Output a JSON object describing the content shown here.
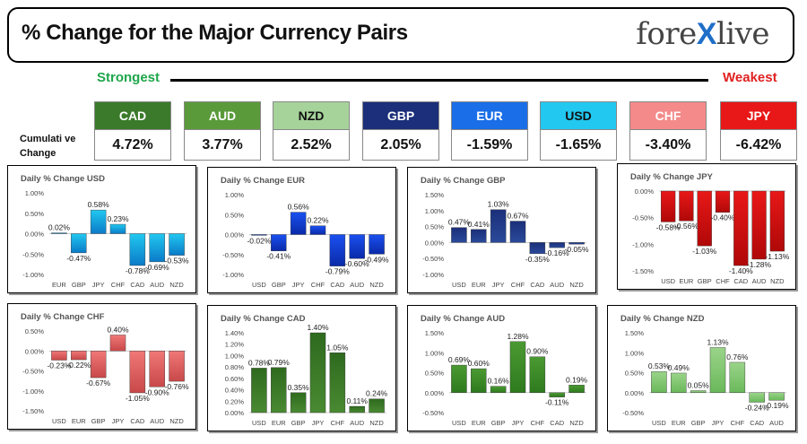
{
  "header": {
    "title": "% Change for the Major Currency Pairs",
    "brand_pre": "fore",
    "brand_x": "X",
    "brand_post": "live"
  },
  "strongest_label": "Strongest",
  "weakest_label": "Weakest",
  "cumulative_label": "Cumulati ve Change",
  "cumulative": [
    {
      "ccy": "CAD",
      "value": "4.72%",
      "color": "#3a7a2a",
      "text_color": "#ffffff"
    },
    {
      "ccy": "AUD",
      "value": "3.77%",
      "color": "#5a9a3a",
      "text_color": "#ffffff"
    },
    {
      "ccy": "NZD",
      "value": "2.52%",
      "color": "#a6d39a",
      "text_color": "#111111"
    },
    {
      "ccy": "GBP",
      "value": "2.05%",
      "color": "#1b2f7a",
      "text_color": "#ffffff"
    },
    {
      "ccy": "EUR",
      "value": "-1.59%",
      "color": "#1a6ee8",
      "text_color": "#ffffff"
    },
    {
      "ccy": "USD",
      "value": "-1.65%",
      "color": "#22c8f0",
      "text_color": "#111111"
    },
    {
      "ccy": "CHF",
      "value": "-3.40%",
      "color": "#f48a8a",
      "text_color": "#ffffff"
    },
    {
      "ccy": "JPY",
      "value": "-6.42%",
      "color": "#e81818",
      "text_color": "#ffffff"
    }
  ],
  "chart_data": [
    {
      "type": "bar",
      "title": "Daily % Change USD",
      "categories": [
        "EUR",
        "GBP",
        "JPY",
        "CHF",
        "CAD",
        "AUD",
        "NZD"
      ],
      "values": [
        0.02,
        -0.47,
        0.58,
        0.23,
        -0.78,
        -0.69,
        -0.53
      ],
      "ylim": [
        -1.0,
        1.0
      ],
      "ticks": [
        1.0,
        0.5,
        0.0,
        -0.5,
        -1.0
      ],
      "color": "#22c8f0",
      "gradient_end": "#0a7ac8"
    },
    {
      "type": "bar",
      "title": "Daily % Change EUR",
      "categories": [
        "USD",
        "GBP",
        "JPY",
        "CHF",
        "CAD",
        "AUD",
        "NZD"
      ],
      "values": [
        -0.02,
        -0.41,
        0.56,
        0.22,
        -0.79,
        -0.6,
        -0.49
      ],
      "ylim": [
        -1.0,
        1.0
      ],
      "ticks": [
        1.0,
        0.5,
        0.0,
        -0.5,
        -1.0
      ],
      "color": "#1a50f0",
      "gradient_end": "#0a2aa8"
    },
    {
      "type": "bar",
      "title": "Daily % Change GBP",
      "categories": [
        "USD",
        "EUR",
        "JPY",
        "CHF",
        "CAD",
        "AUD",
        "NZD"
      ],
      "values": [
        0.47,
        0.41,
        1.03,
        0.67,
        -0.35,
        -0.16,
        -0.05
      ],
      "ylim": [
        -1.0,
        1.5
      ],
      "ticks": [
        1.5,
        1.0,
        0.5,
        0.0,
        -0.5,
        -1.0
      ],
      "color": "#1b2f7a",
      "gradient_end": "#2a4a9a"
    },
    {
      "type": "bar",
      "title": "Daily % Change JPY",
      "categories": [
        "USD",
        "EUR",
        "GBP",
        "CHF",
        "CAD",
        "AUD",
        "NZD"
      ],
      "values": [
        -0.58,
        -0.56,
        -1.03,
        -0.4,
        -1.4,
        -1.28,
        -1.13
      ],
      "ylim": [
        -1.5,
        0.0
      ],
      "ticks": [
        0.0,
        -0.5,
        -1.0,
        -1.5
      ],
      "color": "#e81818",
      "gradient_end": "#b00808"
    },
    {
      "type": "bar",
      "title": "Daily % Change CHF",
      "categories": [
        "USD",
        "EUR",
        "GBP",
        "JPY",
        "CAD",
        "AUD",
        "NZD"
      ],
      "values": [
        -0.23,
        -0.22,
        -0.67,
        0.4,
        -1.05,
        -0.9,
        -0.76
      ],
      "ylim": [
        -1.5,
        0.5
      ],
      "ticks": [
        0.5,
        0.0,
        -0.5,
        -1.0,
        -1.5
      ],
      "color": "#f07878",
      "gradient_end": "#c84848"
    },
    {
      "type": "bar",
      "title": "Daily % Change CAD",
      "categories": [
        "USD",
        "EUR",
        "GBP",
        "JPY",
        "CHF",
        "AUD",
        "NZD"
      ],
      "values": [
        0.78,
        0.79,
        0.35,
        1.4,
        1.05,
        0.11,
        0.24
      ],
      "ylim": [
        0.0,
        1.4
      ],
      "ticks": [
        1.4,
        1.2,
        1.0,
        0.8,
        0.6,
        0.4,
        0.2,
        0.0
      ],
      "color": "#2e6a1e",
      "gradient_end": "#4a8a32"
    },
    {
      "type": "bar",
      "title": "Daily % Change AUD",
      "categories": [
        "USD",
        "EUR",
        "GBP",
        "JPY",
        "CHF",
        "CAD",
        "NZD"
      ],
      "values": [
        0.69,
        0.6,
        0.16,
        1.28,
        0.9,
        -0.11,
        0.19
      ],
      "ylim": [
        -0.5,
        1.5
      ],
      "ticks": [
        1.5,
        1.0,
        0.5,
        0.0,
        -0.5
      ],
      "color": "#4a9a32",
      "gradient_end": "#2e7a1e"
    },
    {
      "type": "bar",
      "title": "Daily % Change NZD",
      "categories": [
        "USD",
        "EUR",
        "GBP",
        "JPY",
        "CHF",
        "CAD",
        "AUD"
      ],
      "values": [
        0.53,
        0.49,
        0.05,
        1.13,
        0.76,
        -0.24,
        -0.19
      ],
      "ylim": [
        -0.5,
        1.5
      ],
      "ticks": [
        1.5,
        1.0,
        0.5,
        0.0,
        -0.5
      ],
      "color": "#9ad48a",
      "gradient_end": "#6ab85a"
    }
  ]
}
